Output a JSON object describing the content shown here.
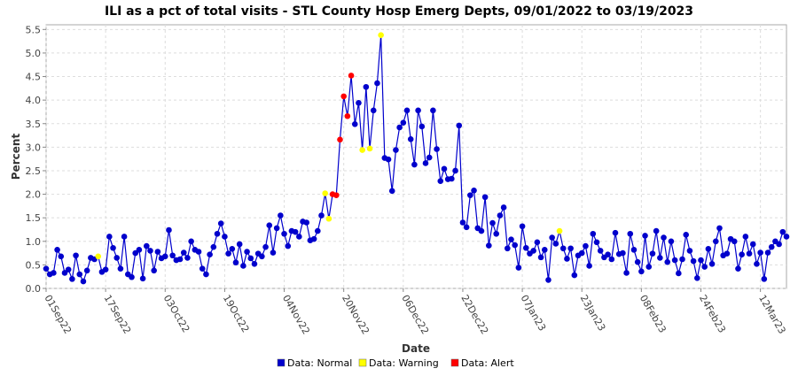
{
  "chart_data": {
    "type": "line",
    "title": "ILI as a pct of total visits - STL County Hosp Emerg Depts, 09/01/2022 to 03/19/2023",
    "xlabel": "Date",
    "ylabel": "Percent",
    "x_start": "2022-09-01",
    "x_end": "2023-03-19",
    "ylim": [
      0,
      5.6
    ],
    "yticks": [
      "0.0",
      "0.5",
      "1.0",
      "1.5",
      "2.0",
      "2.5",
      "3.0",
      "3.5",
      "4.0",
      "4.5",
      "5.0",
      "5.5"
    ],
    "xticks": [
      {
        "date": "2022-09-01",
        "label": "01Sep22"
      },
      {
        "date": "2022-09-17",
        "label": "17Sep22"
      },
      {
        "date": "2022-10-03",
        "label": "03Oct22"
      },
      {
        "date": "2022-10-19",
        "label": "19Oct22"
      },
      {
        "date": "2022-11-04",
        "label": "04Nov22"
      },
      {
        "date": "2022-11-20",
        "label": "20Nov22"
      },
      {
        "date": "2022-12-06",
        "label": "06Dec22"
      },
      {
        "date": "2022-12-22",
        "label": "22Dec22"
      },
      {
        "date": "2023-01-07",
        "label": "07Jan23"
      },
      {
        "date": "2023-01-23",
        "label": "23Jan23"
      },
      {
        "date": "2023-02-08",
        "label": "08Feb23"
      },
      {
        "date": "2023-02-24",
        "label": "24Feb23"
      },
      {
        "date": "2023-03-12",
        "label": "12Mar23"
      }
    ],
    "grid": true,
    "legend_position": "bottom",
    "line_color": "#0000cc",
    "status_colors": {
      "Normal": "#0000cc",
      "Warning": "#ffff00",
      "Alert": "#ff0000"
    },
    "legend": [
      {
        "status": "Normal",
        "label": "Data: Normal",
        "color": "#0000cc"
      },
      {
        "status": "Warning",
        "label": "Data: Warning",
        "color": "#ffff00"
      },
      {
        "status": "Alert",
        "label": "Data: Alert",
        "color": "#ff0000"
      }
    ],
    "series": [
      {
        "values": [
          0.42,
          0.3,
          0.33,
          0.82,
          0.68,
          0.33,
          0.4,
          0.2,
          0.7,
          0.3,
          0.15,
          0.38,
          0.65,
          0.62,
          0.68,
          0.35,
          0.4,
          1.1,
          0.86,
          0.65,
          0.42,
          1.1,
          0.3,
          0.24,
          0.75,
          0.82,
          0.21,
          0.9,
          0.8,
          0.38,
          0.78,
          0.64,
          0.68,
          1.24,
          0.7,
          0.6,
          0.62,
          0.76,
          0.65,
          1.0,
          0.82,
          0.78,
          0.42,
          0.3,
          0.72,
          0.88,
          1.16,
          1.38,
          1.1,
          0.74,
          0.84,
          0.55,
          0.94,
          0.48,
          0.78,
          0.64,
          0.52,
          0.74,
          0.68,
          0.88,
          1.34,
          0.76,
          1.28,
          1.55,
          1.16,
          0.9,
          1.22,
          1.2,
          1.1,
          1.42,
          1.4,
          1.02,
          1.05,
          1.22,
          1.55,
          2.02,
          1.48,
          2.0,
          1.98,
          3.16,
          4.08,
          3.66,
          4.52,
          3.49,
          3.94,
          2.94,
          4.28,
          2.97,
          3.78,
          4.36,
          5.38,
          2.77,
          2.74,
          2.07,
          2.94,
          3.42,
          3.52,
          3.78,
          3.17,
          2.63,
          3.78,
          3.44,
          2.66,
          2.78,
          3.78,
          2.96,
          2.28,
          2.54,
          2.32,
          2.33,
          2.5,
          3.46,
          1.4,
          1.3,
          1.98,
          2.08,
          1.28,
          1.22,
          1.94,
          0.91,
          1.39,
          1.16,
          1.55,
          1.72,
          0.85,
          1.04,
          0.92,
          0.44,
          1.32,
          0.86,
          0.74,
          0.8,
          0.98,
          0.66,
          0.82,
          0.18,
          1.08,
          0.95,
          1.22,
          0.85,
          0.63,
          0.85,
          0.28,
          0.7,
          0.75,
          0.9,
          0.48,
          1.16,
          0.98,
          0.8,
          0.66,
          0.72,
          0.62,
          1.18,
          0.73,
          0.75,
          0.33,
          1.16,
          0.82,
          0.56,
          0.36,
          1.12,
          0.46,
          0.74,
          1.22,
          0.65,
          1.08,
          0.56,
          1.0,
          0.6,
          0.32,
          0.62,
          1.14,
          0.8,
          0.58,
          0.22,
          0.6,
          0.46,
          0.84,
          0.52,
          1.0,
          1.28,
          0.7,
          0.74,
          1.05,
          1.0,
          0.42,
          0.72,
          1.1,
          0.74,
          0.94,
          0.52,
          0.76,
          0.2,
          0.76,
          0.88,
          1.0,
          0.94,
          1.2,
          1.1
        ],
        "warning_indices": [
          14,
          75,
          76,
          85,
          87,
          90,
          138
        ],
        "alert_indices": [
          77,
          78,
          79,
          80,
          81,
          82
        ]
      }
    ]
  }
}
